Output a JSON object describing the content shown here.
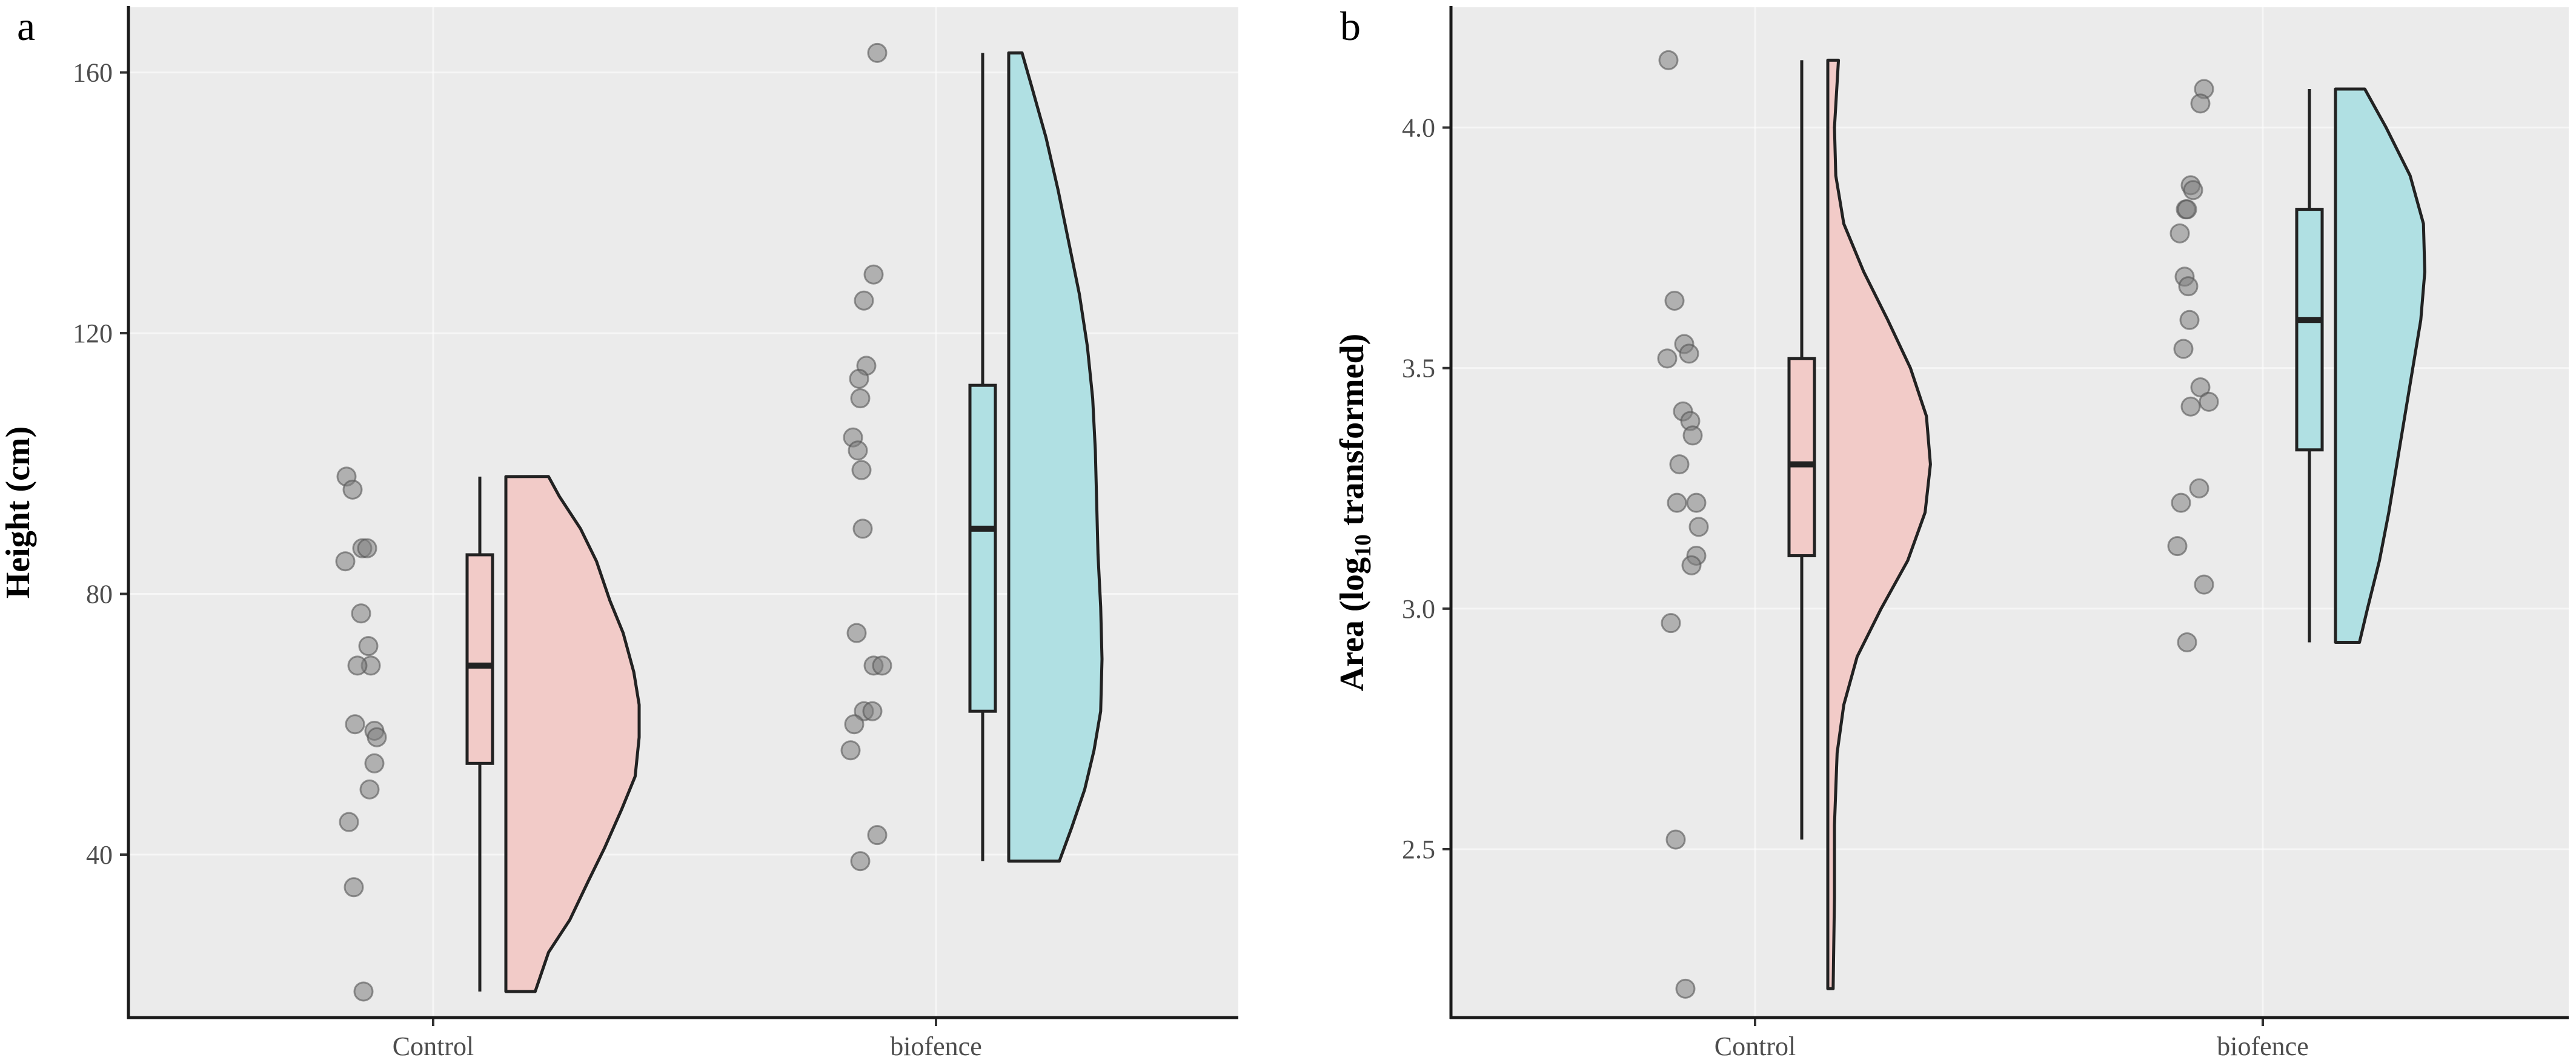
{
  "chart_data": [
    {
      "type": "raincloud",
      "panel_label": "a",
      "title": "",
      "xlabel": "",
      "ylabel": "Height (cm)",
      "ylim": [
        15,
        170
      ],
      "yticks": [
        40,
        80,
        120,
        160
      ],
      "grid": true,
      "categories": [
        "Control",
        "biofence"
      ],
      "groups": [
        {
          "name": "Control",
          "color": "#f2cbc8",
          "points": [
            98,
            96,
            87,
            87,
            85,
            77,
            72,
            69,
            69,
            60,
            59,
            58,
            54,
            50,
            45,
            35,
            19
          ],
          "box": {
            "min": 19,
            "q1": 54,
            "median": 69,
            "q3": 86,
            "max": 98
          },
          "density": {
            "range": [
              19,
              98
            ],
            "levels": [
              19,
              25,
              30,
              36,
              41,
              47,
              52,
              58,
              63,
              68,
              74,
              79,
              85,
              90,
              95,
              98
            ],
            "widths": [
              0.22,
              0.32,
              0.48,
              0.62,
              0.74,
              0.87,
              0.97,
              1.0,
              1.0,
              0.96,
              0.88,
              0.78,
              0.68,
              0.56,
              0.4,
              0.32
            ]
          }
        },
        {
          "name": "biofence",
          "color": "#b0e0e3",
          "points": [
            163,
            129,
            125,
            115,
            113,
            110,
            104,
            102,
            99,
            90,
            74,
            69,
            69,
            62,
            62,
            60,
            56,
            43,
            39
          ],
          "box": {
            "min": 39,
            "q1": 62,
            "median": 90,
            "q3": 112,
            "max": 163
          },
          "density": {
            "range": [
              39,
              163
            ],
            "levels": [
              39,
              44,
              50,
              56,
              62,
              70,
              78,
              86,
              94,
              102,
              110,
              118,
              126,
              134,
              142,
              150,
              158,
              163
            ],
            "widths": [
              0.38,
              0.47,
              0.57,
              0.64,
              0.69,
              0.7,
              0.69,
              0.67,
              0.66,
              0.65,
              0.63,
              0.59,
              0.53,
              0.45,
              0.37,
              0.28,
              0.17,
              0.1
            ]
          }
        }
      ]
    },
    {
      "type": "raincloud",
      "panel_label": "b",
      "title": "",
      "xlabel": "",
      "ylabel": "Area (log",
      "ylabel_subscript": "10",
      "ylabel_suffix": " transformed)",
      "ylim": [
        2.15,
        4.25
      ],
      "yticks": [
        2.5,
        3.0,
        3.5,
        4.0
      ],
      "ytick_labels": [
        "2.5",
        "3.0",
        "3.5",
        "4.0"
      ],
      "grid": true,
      "categories": [
        "Control",
        "biofence"
      ],
      "groups": [
        {
          "name": "Control",
          "color": "#f2cbc8",
          "points": [
            4.14,
            3.64,
            3.55,
            3.53,
            3.52,
            3.41,
            3.39,
            3.36,
            3.3,
            3.22,
            3.22,
            3.17,
            3.11,
            3.09,
            2.97,
            2.52,
            2.21
          ],
          "box": {
            "min": 2.52,
            "q1": 3.11,
            "median": 3.3,
            "q3": 3.52,
            "max": 4.14
          },
          "density": {
            "range": [
              2.21,
              4.14
            ],
            "levels": [
              2.21,
              2.4,
              2.55,
              2.7,
              2.8,
              2.9,
              3.0,
              3.1,
              3.2,
              3.3,
              3.4,
              3.5,
              3.6,
              3.7,
              3.8,
              3.9,
              4.0,
              4.14
            ],
            "widths": [
              0.04,
              0.05,
              0.05,
              0.07,
              0.12,
              0.22,
              0.4,
              0.6,
              0.73,
              0.77,
              0.74,
              0.62,
              0.45,
              0.27,
              0.12,
              0.06,
              0.05,
              0.08
            ]
          }
        },
        {
          "name": "biofence",
          "color": "#b0e0e3",
          "points": [
            4.08,
            4.05,
            3.88,
            3.87,
            3.83,
            3.83,
            3.78,
            3.69,
            3.67,
            3.6,
            3.54,
            3.46,
            3.43,
            3.42,
            3.25,
            3.22,
            3.13,
            3.05,
            2.93
          ],
          "box": {
            "min": 2.93,
            "q1": 3.33,
            "median": 3.6,
            "q3": 3.83,
            "max": 4.08
          },
          "density": {
            "range": [
              2.93,
              4.08
            ],
            "levels": [
              2.93,
              3.0,
              3.1,
              3.2,
              3.3,
              3.4,
              3.5,
              3.6,
              3.7,
              3.8,
              3.9,
              4.0,
              4.08
            ],
            "widths": [
              0.18,
              0.24,
              0.33,
              0.4,
              0.46,
              0.52,
              0.58,
              0.64,
              0.67,
              0.66,
              0.56,
              0.38,
              0.22
            ]
          }
        }
      ]
    }
  ]
}
